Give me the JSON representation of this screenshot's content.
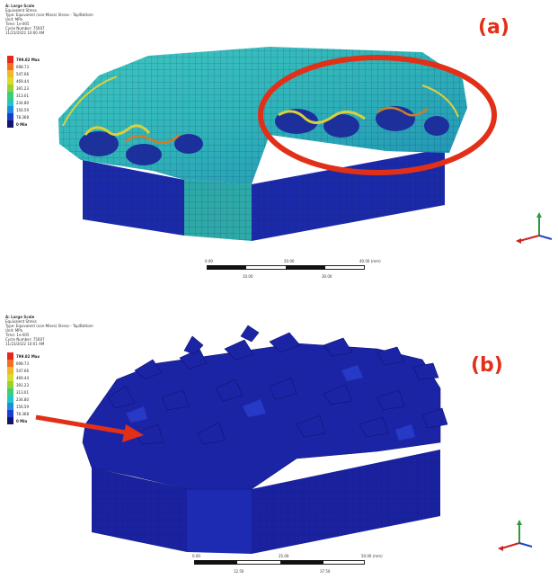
{
  "panels": [
    {
      "id": "a",
      "label": "(a)",
      "header": [
        "A: Large Scale",
        "Equivalent Stress",
        "Type: Equivalent (von-Mises) Stress - Top/Bottom",
        "Unit: MPa",
        "Time: 1e-005",
        "Cycle Number: 75007",
        "11/23/2022 10:00 AM"
      ],
      "legend": [
        {
          "label": "799.82 Max",
          "color": "#e8261a",
          "bold": true
        },
        {
          "label": "698.73",
          "color": "#f2701e"
        },
        {
          "label": "547.66",
          "color": "#f5b62b"
        },
        {
          "label": "469.44",
          "color": "#d9dc2b"
        },
        {
          "label": "391.23",
          "color": "#9bd12f"
        },
        {
          "label": "313.01",
          "color": "#3bcf77"
        },
        {
          "label": "234.80",
          "color": "#21c7c4"
        },
        {
          "label": "156.59",
          "color": "#1a8de0"
        },
        {
          "label": "78.368",
          "color": "#1a3ccf"
        },
        {
          "label": "0 Min",
          "color": "#14146a",
          "bold": true
        }
      ],
      "scale": {
        "top": [
          "0.00",
          "20.00",
          "40.00 (mm)"
        ],
        "bottom": [
          "10.00",
          "30.00"
        ]
      }
    },
    {
      "id": "b",
      "label": "(b)",
      "header": [
        "A: Large Scale",
        "Equivalent Stress",
        "Type: Equivalent (von-Mises) Stress - Top/Bottom",
        "Unit: MPa",
        "Time: 1e-005",
        "Cycle Number: 75007",
        "11/23/2022 10:01 AM"
      ],
      "legend": [
        {
          "label": "799.82 Max",
          "color": "#e8261a",
          "bold": true
        },
        {
          "label": "698.73",
          "color": "#f2701e"
        },
        {
          "label": "547.66",
          "color": "#f5b62b"
        },
        {
          "label": "469.44",
          "color": "#d9dc2b"
        },
        {
          "label": "391.23",
          "color": "#9bd12f"
        },
        {
          "label": "313.01",
          "color": "#3bcf77"
        },
        {
          "label": "234.80",
          "color": "#21c7c4"
        },
        {
          "label": "156.59",
          "color": "#1a8de0"
        },
        {
          "label": "78.368",
          "color": "#1a3ccf"
        },
        {
          "label": "0 Min",
          "color": "#14146a",
          "bold": true
        }
      ],
      "scale": {
        "top": [
          "0.00",
          "25.00",
          "50.00 (mm)"
        ],
        "bottom": [
          "12.50",
          "37.50"
        ]
      }
    }
  ],
  "colors": {
    "annotation": "#e23018",
    "fem_blue": "#1b2aa8",
    "fem_cyan": "#35b9c4"
  }
}
